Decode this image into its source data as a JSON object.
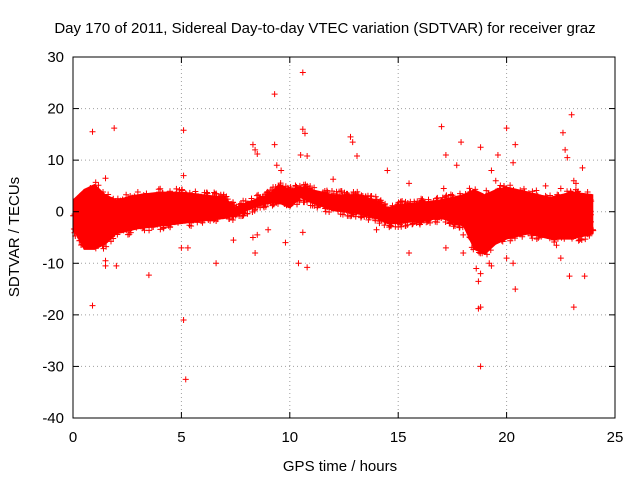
{
  "chart_data": {
    "type": "scatter",
    "title": "Day 170 of 2011, Sidereal Day-to-day VTEC variation (SDTVAR) for receiver graz",
    "xlabel": "GPS time / hours",
    "ylabel": "SDTVAR / TECUs",
    "xlim": [
      0,
      25
    ],
    "ylim": [
      -40,
      30
    ],
    "xticks": [
      0,
      5,
      10,
      15,
      20,
      25
    ],
    "yticks": [
      -40,
      -30,
      -20,
      -10,
      0,
      10,
      20,
      30
    ],
    "grid": true,
    "marker": "+",
    "color": "#ff0000",
    "band": {
      "description": "dense band of points",
      "x": [
        0.0,
        0.5,
        1.0,
        1.5,
        2.0,
        3.0,
        4.0,
        5.0,
        6.0,
        7.0,
        7.5,
        8.0,
        9.0,
        9.5,
        10.0,
        10.5,
        11.0,
        12.0,
        13.0,
        14.0,
        14.5,
        15.0,
        16.0,
        17.0,
        18.0,
        18.5,
        19.0,
        19.5,
        20.0,
        21.0,
        22.0,
        23.0,
        24.0
      ],
      "upper": [
        3,
        5,
        6,
        4,
        3,
        4,
        4.5,
        4.5,
        4,
        3.5,
        1.5,
        2.5,
        4,
        6,
        5,
        5.5,
        5,
        4,
        4,
        3,
        1.5,
        2,
        2.5,
        3,
        4,
        5,
        4,
        5,
        5.5,
        4.5,
        3.5,
        4.5,
        4
      ],
      "lower": [
        -4,
        -8,
        -8,
        -7,
        -5,
        -4,
        -3.5,
        -3,
        -2.5,
        -2,
        -1.5,
        -0.5,
        1,
        1,
        0,
        2,
        1,
        -0.5,
        -1,
        -2,
        -3,
        -3,
        -2.5,
        -2,
        -3.5,
        -8,
        -9,
        -7,
        -6,
        -5,
        -6,
        -6,
        -5
      ]
    },
    "outliers": [
      {
        "x": 0.9,
        "y": 15.5
      },
      {
        "x": 1.9,
        "y": 16.2
      },
      {
        "x": 0.9,
        "y": -18.2
      },
      {
        "x": 1.5,
        "y": -9.5
      },
      {
        "x": 1.5,
        "y": -10.5
      },
      {
        "x": 2.0,
        "y": -10.5
      },
      {
        "x": 1.5,
        "y": 6.5
      },
      {
        "x": 3.5,
        "y": -12.3
      },
      {
        "x": 5.1,
        "y": 15.8
      },
      {
        "x": 5.1,
        "y": 7.0
      },
      {
        "x": 5.1,
        "y": -21.0
      },
      {
        "x": 5.2,
        "y": -32.5
      },
      {
        "x": 5.3,
        "y": -7.0
      },
      {
        "x": 5.0,
        "y": -7.0
      },
      {
        "x": 6.6,
        "y": -10.0
      },
      {
        "x": 7.4,
        "y": -5.5
      },
      {
        "x": 8.3,
        "y": 13.0
      },
      {
        "x": 8.4,
        "y": 12.0
      },
      {
        "x": 8.5,
        "y": 11.2
      },
      {
        "x": 8.4,
        "y": -8.0
      },
      {
        "x": 8.3,
        "y": -5.0
      },
      {
        "x": 8.5,
        "y": -4.5
      },
      {
        "x": 9.0,
        "y": -3.5
      },
      {
        "x": 9.3,
        "y": 22.8
      },
      {
        "x": 9.3,
        "y": 13.0
      },
      {
        "x": 9.4,
        "y": 9.0
      },
      {
        "x": 9.6,
        "y": 8.0
      },
      {
        "x": 9.8,
        "y": -6.0
      },
      {
        "x": 10.4,
        "y": -10.0
      },
      {
        "x": 10.6,
        "y": 27.0
      },
      {
        "x": 10.6,
        "y": 16.0
      },
      {
        "x": 10.7,
        "y": 15.2
      },
      {
        "x": 10.5,
        "y": 11.0
      },
      {
        "x": 10.8,
        "y": 10.8
      },
      {
        "x": 10.8,
        "y": -10.8
      },
      {
        "x": 10.6,
        "y": -4.0
      },
      {
        "x": 12.0,
        "y": 6.3
      },
      {
        "x": 12.8,
        "y": 14.5
      },
      {
        "x": 12.9,
        "y": 13.5
      },
      {
        "x": 13.1,
        "y": 10.8
      },
      {
        "x": 14.0,
        "y": -3.5
      },
      {
        "x": 14.5,
        "y": 8.0
      },
      {
        "x": 15.5,
        "y": 5.5
      },
      {
        "x": 15.5,
        "y": -8.0
      },
      {
        "x": 17.0,
        "y": 16.5
      },
      {
        "x": 17.2,
        "y": 11.0
      },
      {
        "x": 17.1,
        "y": 4.5
      },
      {
        "x": 17.2,
        "y": -7.0
      },
      {
        "x": 17.7,
        "y": 9.0
      },
      {
        "x": 17.9,
        "y": 13.5
      },
      {
        "x": 18.0,
        "y": -4.5
      },
      {
        "x": 18.0,
        "y": -8.0
      },
      {
        "x": 18.3,
        "y": -5.0
      },
      {
        "x": 18.6,
        "y": -11.0
      },
      {
        "x": 18.7,
        "y": -13.5
      },
      {
        "x": 18.8,
        "y": -12.0
      },
      {
        "x": 18.7,
        "y": -18.8
      },
      {
        "x": 18.8,
        "y": -18.5
      },
      {
        "x": 18.8,
        "y": -30.0
      },
      {
        "x": 18.8,
        "y": 12.5
      },
      {
        "x": 19.2,
        "y": -10.0
      },
      {
        "x": 19.3,
        "y": -10.5
      },
      {
        "x": 19.3,
        "y": 8.0
      },
      {
        "x": 19.5,
        "y": 6.0
      },
      {
        "x": 19.6,
        "y": 11.0
      },
      {
        "x": 20.0,
        "y": 16.2
      },
      {
        "x": 20.3,
        "y": 9.5
      },
      {
        "x": 20.4,
        "y": 13.0
      },
      {
        "x": 20.3,
        "y": -10.0
      },
      {
        "x": 20.4,
        "y": -15.0
      },
      {
        "x": 20.0,
        "y": -9.0
      },
      {
        "x": 21.8,
        "y": 5.0
      },
      {
        "x": 22.3,
        "y": -6.5
      },
      {
        "x": 22.5,
        "y": -9.0
      },
      {
        "x": 22.6,
        "y": 15.3
      },
      {
        "x": 22.7,
        "y": 12.0
      },
      {
        "x": 22.8,
        "y": 10.5
      },
      {
        "x": 22.9,
        "y": -12.5
      },
      {
        "x": 23.0,
        "y": 18.8
      },
      {
        "x": 23.1,
        "y": -18.5
      },
      {
        "x": 23.6,
        "y": -12.5
      },
      {
        "x": 23.5,
        "y": 8.5
      },
      {
        "x": 23.1,
        "y": 6.0
      },
      {
        "x": 22.5,
        "y": 4.5
      },
      {
        "x": 23.2,
        "y": 5.5
      }
    ]
  }
}
